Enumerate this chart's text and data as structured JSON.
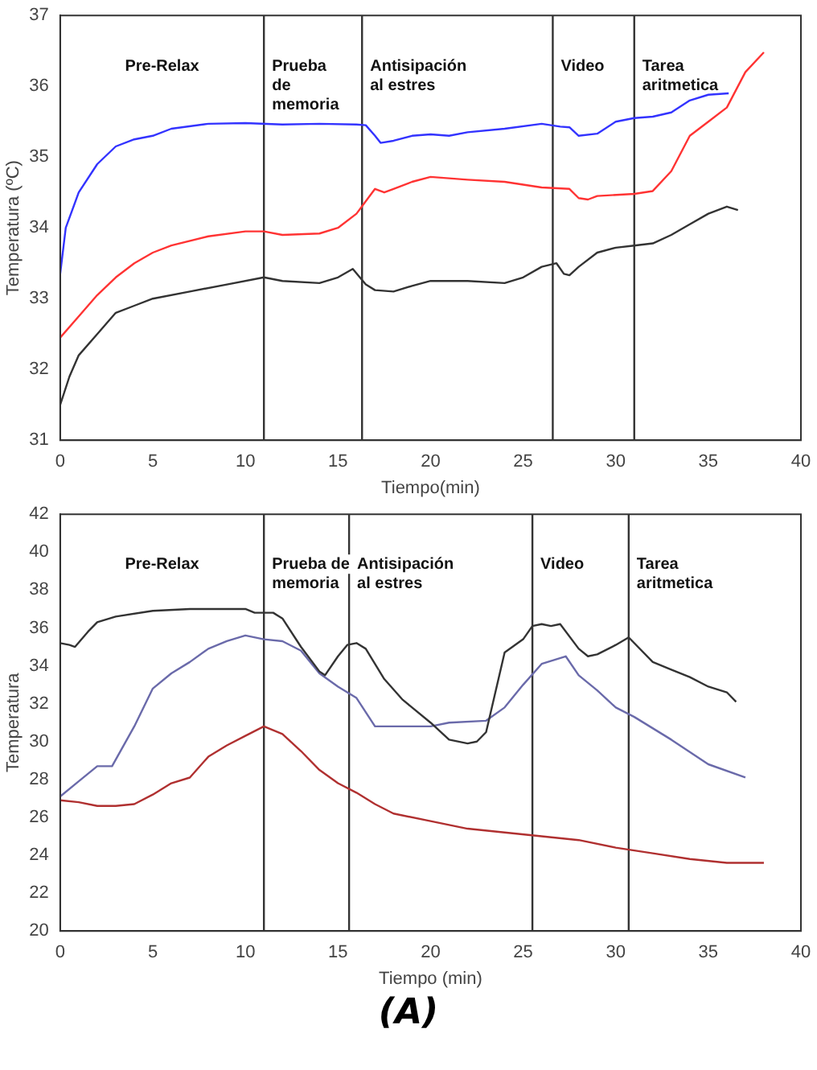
{
  "chart_data": [
    {
      "type": "line",
      "xlabel": "Tiempo(min)",
      "ylabel": "Temperatura (ºC)",
      "xlim": [
        0,
        40
      ],
      "ylim": [
        31,
        37
      ],
      "xticks": [
        0,
        5,
        10,
        15,
        20,
        25,
        30,
        35,
        40
      ],
      "yticks": [
        31,
        32,
        33,
        34,
        35,
        36,
        37
      ],
      "grid": false,
      "legend": false,
      "marker": "none",
      "line_style": "solid",
      "series": [
        {
          "color": "#3333ff",
          "x": [
            0,
            0.3,
            1,
            2,
            3,
            4,
            5,
            6,
            8,
            10,
            12,
            14,
            16,
            16.5,
            17,
            17.3,
            18,
            19,
            20,
            21,
            22,
            24,
            26,
            27,
            27.5,
            28,
            29,
            30,
            31,
            32,
            33,
            34,
            35,
            36.1
          ],
          "values": [
            33.35,
            34,
            34.5,
            34.9,
            35.15,
            35.25,
            35.3,
            35.4,
            35.47,
            35.48,
            35.46,
            35.47,
            35.46,
            35.45,
            35.3,
            35.2,
            35.23,
            35.3,
            35.32,
            35.3,
            35.35,
            35.4,
            35.47,
            35.43,
            35.42,
            35.3,
            35.33,
            35.5,
            35.55,
            35.57,
            35.63,
            35.8,
            35.88,
            35.9
          ]
        },
        {
          "color": "#ff3333",
          "x": [
            0,
            1,
            2,
            3,
            4,
            5,
            6,
            8,
            10,
            11,
            12,
            14,
            15,
            16,
            17,
            17.5,
            18,
            19,
            20,
            22,
            24,
            26,
            27.5,
            28,
            28.5,
            29,
            31,
            32,
            33,
            34,
            35,
            36,
            37,
            38
          ],
          "values": [
            32.45,
            32.75,
            33.05,
            33.3,
            33.5,
            33.65,
            33.75,
            33.88,
            33.95,
            33.95,
            33.9,
            33.92,
            34,
            34.2,
            34.55,
            34.5,
            34.55,
            34.65,
            34.72,
            34.68,
            34.65,
            34.57,
            34.55,
            34.42,
            34.4,
            34.45,
            34.48,
            34.52,
            34.8,
            35.3,
            35.5,
            35.7,
            36.2,
            36.48
          ]
        },
        {
          "color": "#333333",
          "x": [
            0,
            0.5,
            1,
            2,
            3,
            4,
            5,
            7,
            9,
            11,
            12,
            14,
            15,
            15.8,
            16.5,
            17,
            18,
            19,
            20,
            22,
            24,
            25,
            26,
            26.8,
            27.2,
            27.5,
            28,
            29,
            30,
            31,
            32,
            33,
            34,
            35,
            36,
            36.6
          ],
          "values": [
            31.5,
            31.9,
            32.2,
            32.5,
            32.8,
            32.9,
            33,
            33.1,
            33.2,
            33.3,
            33.25,
            33.22,
            33.3,
            33.42,
            33.2,
            33.12,
            33.1,
            33.18,
            33.25,
            33.25,
            33.22,
            33.3,
            33.45,
            33.5,
            33.35,
            33.33,
            33.45,
            33.65,
            33.72,
            33.75,
            33.78,
            33.9,
            34.05,
            34.2,
            34.3,
            34.25
          ]
        }
      ],
      "ref_lines": [
        {
          "axis": "x",
          "value": 11,
          "color": "#333333"
        },
        {
          "axis": "x",
          "value": 16.3,
          "color": "#333333"
        },
        {
          "axis": "x",
          "value": 26.6,
          "color": "#333333"
        },
        {
          "axis": "x",
          "value": 31,
          "color": "#333333"
        }
      ],
      "annotations": [
        "Pre-Relax",
        "Prueba\nde\nmemoria",
        "Antisipación\nal estres",
        "Video",
        "Tarea\naritmetica"
      ]
    },
    {
      "type": "line",
      "xlabel": "Tiempo (min)",
      "ylabel": "Temperatura",
      "xlim": [
        0,
        40
      ],
      "ylim": [
        20,
        42
      ],
      "xticks": [
        0,
        5,
        10,
        15,
        20,
        25,
        30,
        35,
        40
      ],
      "yticks": [
        20,
        22,
        24,
        26,
        28,
        30,
        32,
        34,
        36,
        38,
        40,
        42
      ],
      "grid": false,
      "legend": false,
      "marker": "none",
      "line_style": "solid",
      "series": [
        {
          "color": "#333333",
          "x": [
            0,
            0.5,
            0.8,
            1.5,
            2,
            3,
            5,
            7,
            9,
            10,
            10.5,
            11.5,
            12,
            13,
            14,
            14.3,
            15,
            15.5,
            16,
            16.5,
            17.5,
            18.5,
            20,
            21,
            22,
            22.5,
            23,
            24,
            25,
            25.5,
            26,
            26.5,
            27,
            28,
            28.5,
            29,
            30,
            30.7,
            32,
            33,
            34,
            35,
            36,
            36.5
          ],
          "values": [
            35.2,
            35.1,
            35,
            35.8,
            36.3,
            36.6,
            36.9,
            37,
            37,
            37,
            36.8,
            36.8,
            36.5,
            35,
            33.7,
            33.5,
            34.5,
            35.1,
            35.2,
            34.9,
            33.3,
            32.2,
            31,
            30.1,
            29.9,
            30,
            30.5,
            34.7,
            35.4,
            36.1,
            36.2,
            36.1,
            36.2,
            34.9,
            34.5,
            34.6,
            35.1,
            35.5,
            34.2,
            33.8,
            33.4,
            32.9,
            32.6,
            32.1
          ]
        },
        {
          "color": "#6a6aaa",
          "x": [
            0,
            1,
            2,
            2.8,
            4,
            5,
            6,
            7,
            8,
            9,
            10,
            11,
            12,
            13,
            14,
            15,
            16,
            17,
            18,
            20,
            21,
            23,
            24,
            25,
            26,
            27.3,
            28,
            29,
            30,
            31,
            33,
            35,
            37
          ],
          "values": [
            27.1,
            27.9,
            28.7,
            28.7,
            30.8,
            32.8,
            33.6,
            34.2,
            34.9,
            35.3,
            35.6,
            35.4,
            35.3,
            34.8,
            33.6,
            32.9,
            32.3,
            30.8,
            30.8,
            30.8,
            31,
            31.1,
            31.8,
            33,
            34.1,
            34.5,
            33.5,
            32.7,
            31.8,
            31.3,
            30.1,
            28.8,
            28.1
          ]
        },
        {
          "color": "#b03030",
          "x": [
            0,
            1,
            2,
            3,
            4,
            5,
            6,
            7,
            8,
            9,
            10,
            11,
            12,
            13,
            14,
            15,
            16,
            17,
            18,
            20,
            22,
            24,
            26,
            28,
            30,
            32,
            34,
            36,
            38
          ],
          "values": [
            26.9,
            26.8,
            26.6,
            26.6,
            26.7,
            27.2,
            27.8,
            28.1,
            29.2,
            29.8,
            30.3,
            30.8,
            30.4,
            29.5,
            28.5,
            27.8,
            27.3,
            26.7,
            26.2,
            25.8,
            25.4,
            25.2,
            25,
            24.8,
            24.4,
            24.1,
            23.8,
            23.6,
            23.6
          ]
        }
      ],
      "ref_lines": [
        {
          "axis": "x",
          "value": 11,
          "color": "#333333"
        },
        {
          "axis": "x",
          "value": 15.6,
          "color": "#333333"
        },
        {
          "axis": "x",
          "value": 25.5,
          "color": "#333333"
        },
        {
          "axis": "x",
          "value": 30.7,
          "color": "#333333"
        }
      ],
      "annotations": [
        "Pre-Relax",
        "Prueba de\nmemoria",
        "Antisipación\nal estres",
        "Video",
        "Tarea\naritmetica",
        "(A)"
      ]
    }
  ]
}
